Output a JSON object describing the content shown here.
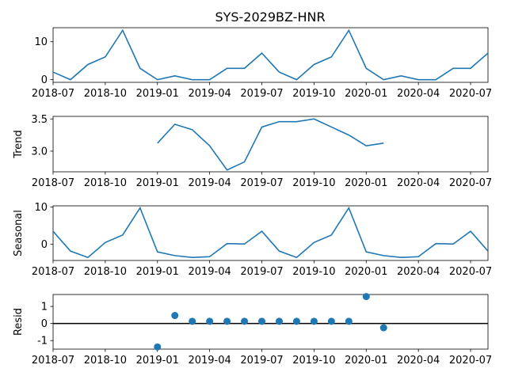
{
  "chart_data": {
    "type": "line",
    "title": "SYS-2029BZ-HNR",
    "x_tick_labels": [
      "2018-07",
      "2018-10",
      "2019-01",
      "2019-04",
      "2019-07",
      "2019-10",
      "2020-01",
      "2020-04",
      "2020-07"
    ],
    "x_dates": [
      "2018-07",
      "2018-08",
      "2018-09",
      "2018-10",
      "2018-11",
      "2018-12",
      "2019-01",
      "2019-02",
      "2019-03",
      "2019-04",
      "2019-05",
      "2019-06",
      "2019-07",
      "2019-08",
      "2019-09",
      "2019-10",
      "2019-11",
      "2019-12",
      "2020-01",
      "2020-02",
      "2020-03",
      "2020-04",
      "2020-05",
      "2020-06",
      "2020-07",
      "2020-08"
    ],
    "colors": {
      "line": "#1f77b4",
      "zero_line": "#000000"
    },
    "panels": [
      {
        "name": "observed",
        "ylabel": "",
        "type": "line",
        "yticks": [
          0,
          10
        ],
        "ylim": [
          -0.7,
          13.7
        ],
        "values": [
          2,
          0,
          4,
          6,
          13,
          3,
          0,
          1,
          0,
          0,
          3,
          3,
          7,
          2,
          0,
          4,
          6,
          13,
          3,
          0,
          1,
          0,
          0,
          3,
          3,
          7
        ]
      },
      {
        "name": "trend",
        "ylabel": "Trend",
        "type": "line",
        "yticks": [
          3.0,
          3.5
        ],
        "ylim": [
          2.68,
          3.54
        ],
        "values": [
          null,
          null,
          null,
          null,
          null,
          null,
          3.125,
          3.417,
          3.333,
          3.083,
          2.708,
          2.833,
          3.375,
          3.458,
          3.458,
          3.5,
          3.375,
          3.25,
          3.083,
          3.125,
          null,
          null,
          null,
          null,
          null,
          null
        ]
      },
      {
        "name": "seasonal",
        "ylabel": "Seasonal",
        "type": "line",
        "yticks": [
          0,
          10
        ],
        "ylim": [
          -4.3,
          10.3
        ],
        "values": [
          3.5,
          -1.8,
          -3.5,
          0.5,
          2.5,
          9.75,
          -2.0,
          -3.0,
          -3.5,
          -3.3,
          0.2,
          0.1,
          3.5,
          -1.8,
          -3.5,
          0.5,
          2.5,
          9.75,
          -2.0,
          -3.0,
          -3.5,
          -3.3,
          0.2,
          0.1,
          3.5,
          -1.8
        ]
      },
      {
        "name": "resid",
        "ylabel": "Resid",
        "type": "scatter",
        "yticks": [
          -1,
          0,
          1
        ],
        "ylim": [
          -1.5,
          1.7
        ],
        "values": [
          null,
          null,
          null,
          null,
          null,
          null,
          -1.37,
          0.47,
          0.13,
          0.13,
          0.13,
          0.13,
          0.13,
          0.13,
          0.13,
          0.13,
          0.13,
          0.13,
          1.58,
          -0.25,
          null,
          null,
          null,
          null,
          null,
          null
        ]
      }
    ]
  }
}
